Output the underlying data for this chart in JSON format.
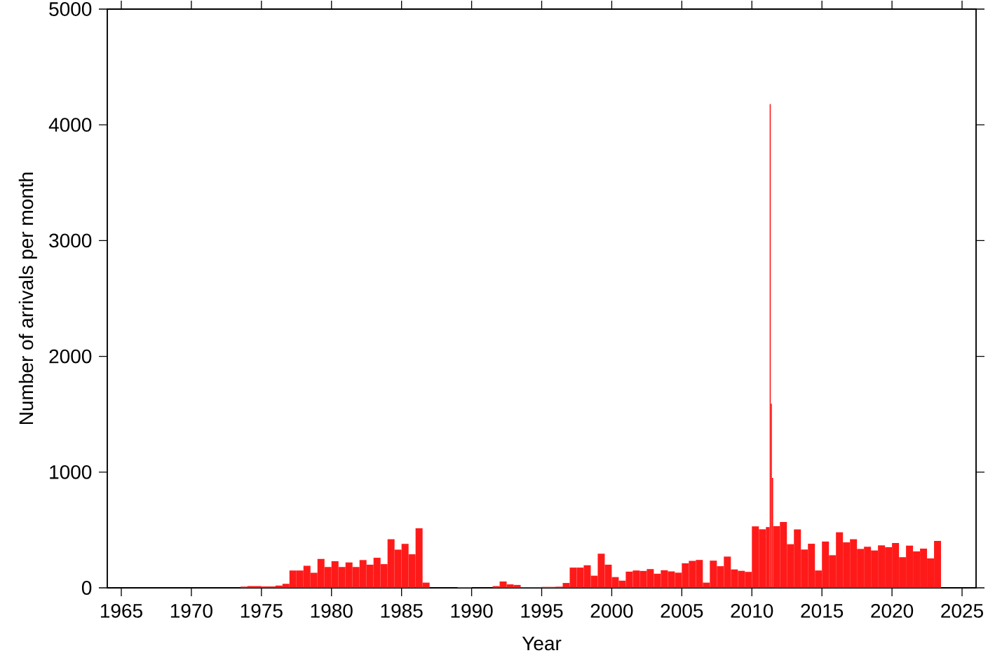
{
  "chart_data": {
    "type": "histogram",
    "xlabel": "Year",
    "ylabel": "Number of arrivals per month",
    "color": "#ff1a1a",
    "bins": [
      1973.5,
      1974,
      1974.5,
      1975,
      1975.5,
      1976,
      1976.5,
      1977,
      1977.5,
      1978,
      1978.5,
      1979,
      1979.5,
      1980,
      1980.5,
      1981,
      1981.5,
      1982,
      1982.5,
      1983,
      1983.5,
      1984,
      1984.5,
      1985,
      1985.5,
      1986,
      1986.5,
      1987,
      1989,
      1990,
      1991.5,
      1992,
      1992.5,
      1993,
      1993.5,
      1994,
      1995,
      1996,
      1996.5,
      1997,
      1997.5,
      1998,
      1998.5,
      1999,
      1999.5,
      2000,
      2000.5,
      2001,
      2001.5,
      2002,
      2002.5,
      2003,
      2003.5,
      2004,
      2004.5,
      2005,
      2005.5,
      2006,
      2006.5,
      2007,
      2007.5,
      2008,
      2008.5,
      2009,
      2009.5,
      2010,
      2010.5,
      2011,
      2011.27,
      2011.35,
      2011.43,
      2011.52,
      2012,
      2012.5,
      2013,
      2013.5,
      2014,
      2014.5,
      2015,
      2015.5,
      2016,
      2016.5,
      2017,
      2017.5,
      2018,
      2018.5,
      2019,
      2019.5,
      2020,
      2020.5,
      2021,
      2021.5,
      2022,
      2022.5,
      2023,
      2023.5
    ],
    "values": [
      10,
      15,
      15,
      12,
      12,
      20,
      35,
      150,
      150,
      190,
      130,
      250,
      180,
      230,
      180,
      220,
      180,
      240,
      200,
      260,
      205,
      420,
      330,
      380,
      290,
      515,
      45,
      0,
      6,
      0,
      15,
      55,
      30,
      25,
      5,
      5,
      8,
      10,
      42,
      175,
      175,
      195,
      105,
      295,
      200,
      93,
      62,
      140,
      150,
      146,
      162,
      122,
      152,
      142,
      131,
      212,
      233,
      241,
      45,
      235,
      187,
      270,
      159,
      147,
      138,
      531,
      506,
      525,
      4180,
      1590,
      950,
      533,
      569,
      377,
      505,
      331,
      381,
      150,
      400,
      282,
      480,
      393,
      420,
      336,
      355,
      323,
      367,
      351,
      388,
      265,
      364,
      315,
      339,
      254,
      405
    ],
    "xlim": [
      1964,
      2026
    ],
    "ylim": [
      0,
      5000
    ],
    "xticks": [
      1965,
      1970,
      1975,
      1980,
      1985,
      1990,
      1995,
      2000,
      2005,
      2010,
      2015,
      2020,
      2025
    ],
    "yticks": [
      0,
      1000,
      2000,
      3000,
      4000,
      5000
    ]
  }
}
